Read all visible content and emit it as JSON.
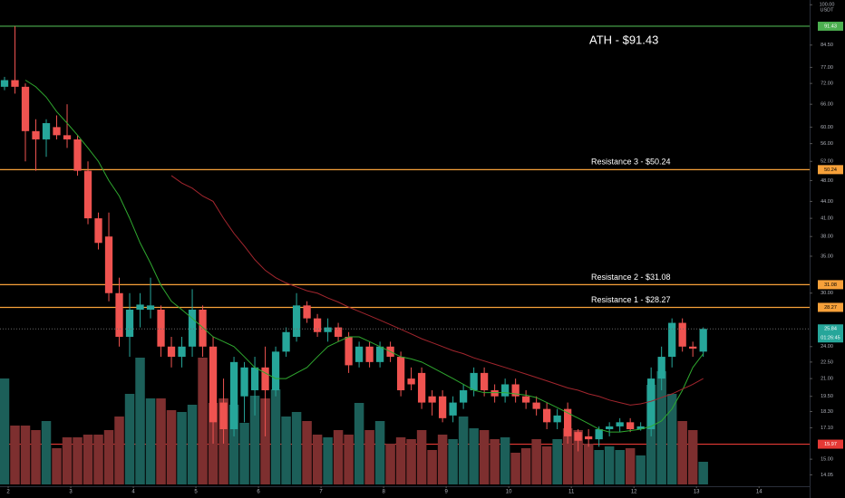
{
  "chart_data": {
    "type": "candlestick",
    "log_scale": true,
    "ylim": [
      13.5,
      102
    ],
    "xlim": [
      -0.435,
      77.2
    ],
    "yticks": [
      {
        "value": 100,
        "label": "100.00"
      },
      {
        "value": 84.5,
        "label": "84.50"
      },
      {
        "value": 77,
        "label": "77.00"
      },
      {
        "value": 72,
        "label": "72.00"
      },
      {
        "value": 66,
        "label": "66.00"
      },
      {
        "value": 60,
        "label": "60.00"
      },
      {
        "value": 56,
        "label": "56.00"
      },
      {
        "value": 52,
        "label": "52.00"
      },
      {
        "value": 48,
        "label": "48.00"
      },
      {
        "value": 44,
        "label": "44.00"
      },
      {
        "value": 41,
        "label": "41.00"
      },
      {
        "value": 38,
        "label": "38.00"
      },
      {
        "value": 35,
        "label": "35.00"
      },
      {
        "value": 30,
        "label": "30.00"
      },
      {
        "value": 24,
        "label": "24.00"
      },
      {
        "value": 22.5,
        "label": "22.50"
      },
      {
        "value": 21,
        "label": "21.00"
      },
      {
        "value": 19.5,
        "label": "19.50"
      },
      {
        "value": 18.3,
        "label": "18.30"
      },
      {
        "value": 17.1,
        "label": "17.10"
      },
      {
        "value": 15,
        "label": "15.00"
      },
      {
        "value": 14.05,
        "label": "14.05"
      }
    ],
    "currency": "USDT",
    "xticks": [
      {
        "value": 0.35,
        "label": "2"
      },
      {
        "value": 6.35,
        "label": "3"
      },
      {
        "value": 12.35,
        "label": "4"
      },
      {
        "value": 18.35,
        "label": "5"
      },
      {
        "value": 24.35,
        "label": "6"
      },
      {
        "value": 30.35,
        "label": "7"
      },
      {
        "value": 36.35,
        "label": "8"
      },
      {
        "value": 42.35,
        "label": "9"
      },
      {
        "value": 48.35,
        "label": "10"
      },
      {
        "value": 54.35,
        "label": "11"
      },
      {
        "value": 60.35,
        "label": "12"
      },
      {
        "value": 66.35,
        "label": "13"
      },
      {
        "value": 72.35,
        "label": "14"
      }
    ],
    "up_color": "#26a69a",
    "down_color": "#ef5350",
    "open": [
      71,
      73,
      71,
      59,
      57,
      60,
      58,
      57,
      50,
      41,
      38,
      30,
      25,
      28,
      28,
      28,
      24,
      23,
      24,
      28,
      24,
      19,
      17,
      19.5,
      20,
      22,
      20,
      23.5,
      25,
      28.5,
      27,
      25.5,
      26,
      25,
      22.5,
      24,
      22.5,
      24,
      23,
      21,
      21.5,
      19.5,
      19.5,
      18,
      19,
      20,
      21.5,
      20,
      19.5,
      20.5,
      19.5,
      19,
      18.5,
      17.5,
      18.5,
      16.8,
      16.5,
      16.3,
      17,
      17.2,
      17.5,
      17,
      17,
      21,
      23,
      26.5,
      24,
      23.5
    ],
    "high": [
      74,
      91.43,
      72,
      62,
      62,
      63,
      66,
      58,
      52,
      42,
      42,
      32,
      30,
      30,
      32,
      28.5,
      25,
      25,
      30.5,
      28.5,
      25,
      21,
      23,
      22.5,
      23,
      24,
      24,
      26,
      30,
      29,
      27.5,
      27,
      26.5,
      25.5,
      24.5,
      24.5,
      24.5,
      24.5,
      23.5,
      22,
      22,
      20,
      20,
      19.5,
      20.5,
      22,
      22,
      20.5,
      21,
      21,
      20,
      19.5,
      19,
      18.5,
      19,
      17,
      17,
      17.2,
      17.5,
      17.8,
      17.8,
      17.5,
      22,
      24,
      27,
      27,
      24.5,
      26
    ],
    "low": [
      70,
      69,
      52,
      50,
      53,
      57,
      55,
      49,
      40,
      36,
      29,
      24,
      23,
      26,
      27,
      23,
      22,
      22,
      23,
      23,
      16,
      16,
      16.5,
      17.5,
      18,
      16.5,
      19.5,
      23,
      24.5,
      26.5,
      25,
      24.5,
      24.5,
      21.5,
      22,
      22,
      22,
      22.5,
      19.5,
      20,
      18.5,
      18,
      17.5,
      17.5,
      18.5,
      19.5,
      19.5,
      19,
      19,
      19,
      18.5,
      18,
      17,
      17,
      16,
      15.5,
      15.8,
      15.8,
      16.5,
      16.8,
      16.8,
      16.9,
      16.5,
      20,
      22,
      23.5,
      23,
      23
    ],
    "close": [
      73,
      71,
      59,
      57,
      61,
      58,
      57,
      50,
      41,
      37,
      30,
      25,
      28,
      28.6,
      28.5,
      24,
      23,
      24,
      28,
      24,
      17.5,
      17,
      22.5,
      22,
      22,
      20,
      23.5,
      25.5,
      28.5,
      27,
      25.5,
      26,
      25,
      22.2,
      24,
      22.5,
      24,
      23,
      20,
      20.5,
      19,
      19,
      17.8,
      19,
      20,
      21.5,
      20,
      19.5,
      20.5,
      19.5,
      19,
      18.5,
      17.5,
      18,
      16.5,
      16.2,
      16.3,
      17,
      17.2,
      17.5,
      17,
      17.2,
      21,
      23,
      26.5,
      24,
      23.8,
      25.84
    ],
    "volume": [
      117,
      65,
      65,
      60,
      70,
      40,
      52,
      52,
      55,
      55,
      60,
      75,
      100,
      140,
      95,
      95,
      82,
      80,
      88,
      140,
      90,
      95,
      88,
      68,
      98,
      95,
      105,
      75,
      80,
      70,
      55,
      52,
      60,
      55,
      90,
      60,
      70,
      45,
      52,
      50,
      60,
      38,
      55,
      50,
      75,
      62,
      60,
      50,
      52,
      35,
      40,
      50,
      42,
      50,
      62,
      60,
      45,
      38,
      42,
      38,
      40,
      32,
      110,
      125,
      100,
      70,
      60,
      25
    ],
    "volume_ylim": [
      0,
      535
    ],
    "volume_up_color": "#1c5f59",
    "volume_down_color": "#7d2f2f",
    "series": [
      {
        "color": "#2fa82f",
        "values": [
          null,
          null,
          73,
          71,
          68,
          64,
          61,
          58,
          55,
          52,
          48,
          45,
          41,
          37,
          34,
          31,
          29,
          28,
          27,
          26,
          25,
          24.5,
          24,
          23,
          22,
          21.5,
          21,
          21,
          21.5,
          22,
          23,
          24,
          24.5,
          25,
          25,
          24.5,
          24,
          23.5,
          23,
          22.8,
          22.5,
          22,
          21.5,
          21,
          20.5,
          20,
          19.8,
          19.8,
          19.8,
          19.7,
          19.6,
          19.4,
          19,
          18.6,
          18.2,
          17.8,
          17.4,
          17,
          16.8,
          16.8,
          16.9,
          17,
          17.2,
          17.6,
          18.5,
          20,
          22,
          23.3
        ]
      },
      {
        "color": "#a3262e",
        "values": [
          null,
          null,
          null,
          null,
          null,
          null,
          null,
          null,
          null,
          null,
          null,
          null,
          null,
          null,
          null,
          null,
          49,
          47.5,
          46.5,
          45,
          44,
          41,
          38.5,
          36.5,
          34.5,
          33,
          32,
          31.3,
          30.8,
          30.3,
          30,
          29.4,
          28.9,
          28.3,
          27.8,
          27.3,
          26.8,
          26.3,
          25.8,
          25.3,
          24.8,
          24.4,
          24,
          23.6,
          23.3,
          22.9,
          22.6,
          22.3,
          22,
          21.7,
          21.4,
          21.1,
          20.8,
          20.5,
          20.2,
          20,
          19.7,
          19.5,
          19.2,
          19,
          18.8,
          18.9,
          19.1,
          19.4,
          19.7,
          20.1,
          20.5,
          21
        ]
      }
    ],
    "levels": [
      {
        "value": 91.43,
        "color": "#4caf50",
        "annotation": "ATH - $91.43"
      },
      {
        "value": 50.24,
        "color": "#f7a13a",
        "annotation": "Resistance 3 - $50.24"
      },
      {
        "value": 31.08,
        "color": "#f7a13a",
        "annotation": "Resistance 2 - $31.08"
      },
      {
        "value": 28.27,
        "color": "#f7a13a",
        "annotation": "Resistance 1 - $28.27"
      },
      {
        "value": 15.97,
        "color": "#e53935"
      }
    ],
    "current_price": {
      "value": 25.84,
      "countdown": "01:26:45",
      "color": "#26a69a"
    }
  }
}
